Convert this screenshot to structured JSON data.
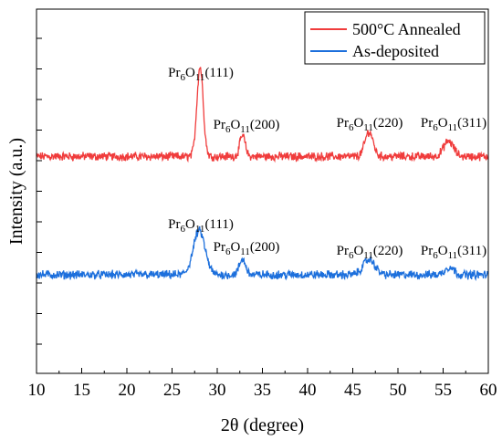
{
  "chart_data": {
    "type": "line",
    "xlabel": "2θ (degree)",
    "ylabel": "Intensity (a.u.)",
    "xlim": [
      10,
      60
    ],
    "xticks": [
      10,
      15,
      20,
      25,
      30,
      35,
      40,
      45,
      50,
      55,
      60
    ],
    "grid": false,
    "legend_position": "top-right",
    "series": [
      {
        "name": "500°C Annealed",
        "color": "#f03c3c",
        "baseline": 0.62,
        "noise": 0.018,
        "peaks": [
          {
            "x": 28.1,
            "height": 0.47,
            "width": 0.35
          },
          {
            "x": 32.8,
            "height": 0.11,
            "width": 0.3
          },
          {
            "x": 46.8,
            "height": 0.13,
            "width": 0.45
          },
          {
            "x": 55.6,
            "height": 0.08,
            "width": 0.55
          }
        ]
      },
      {
        "name": "As-deposited",
        "color": "#1c6fdc",
        "baseline": 0.0,
        "noise": 0.018,
        "peaks": [
          {
            "x": 28.0,
            "height": 0.23,
            "width": 0.65
          },
          {
            "x": 32.8,
            "height": 0.08,
            "width": 0.35
          },
          {
            "x": 46.8,
            "height": 0.08,
            "width": 0.65
          },
          {
            "x": 55.7,
            "height": 0.04,
            "width": 0.5
          }
        ]
      }
    ],
    "annotations": [
      {
        "series": 0,
        "base": "Pr",
        "sub1": "6",
        "mid": "O",
        "sub2": "11",
        "plane": "(111)",
        "x": 28.1
      },
      {
        "series": 0,
        "base": "Pr",
        "sub1": "6",
        "mid": "O",
        "sub2": "11",
        "plane": "(200)",
        "x": 32.8
      },
      {
        "series": 0,
        "base": "Pr",
        "sub1": "6",
        "mid": "O",
        "sub2": "11",
        "plane": "(220)",
        "x": 46.8
      },
      {
        "series": 0,
        "base": "Pr",
        "sub1": "6",
        "mid": "O",
        "sub2": "11",
        "plane": "(311)",
        "x": 55.6
      },
      {
        "series": 1,
        "base": "Pr",
        "sub1": "6",
        "mid": "O",
        "sub2": "11",
        "plane": "(111)",
        "x": 28.0
      },
      {
        "series": 1,
        "base": "Pr",
        "sub1": "6",
        "mid": "O",
        "sub2": "11",
        "plane": "(200)",
        "x": 32.8
      },
      {
        "series": 1,
        "base": "Pr",
        "sub1": "6",
        "mid": "O",
        "sub2": "11",
        "plane": "(220)",
        "x": 46.8
      },
      {
        "series": 1,
        "base": "Pr",
        "sub1": "6",
        "mid": "O",
        "sub2": "11",
        "plane": "(311)",
        "x": 55.7
      }
    ]
  }
}
